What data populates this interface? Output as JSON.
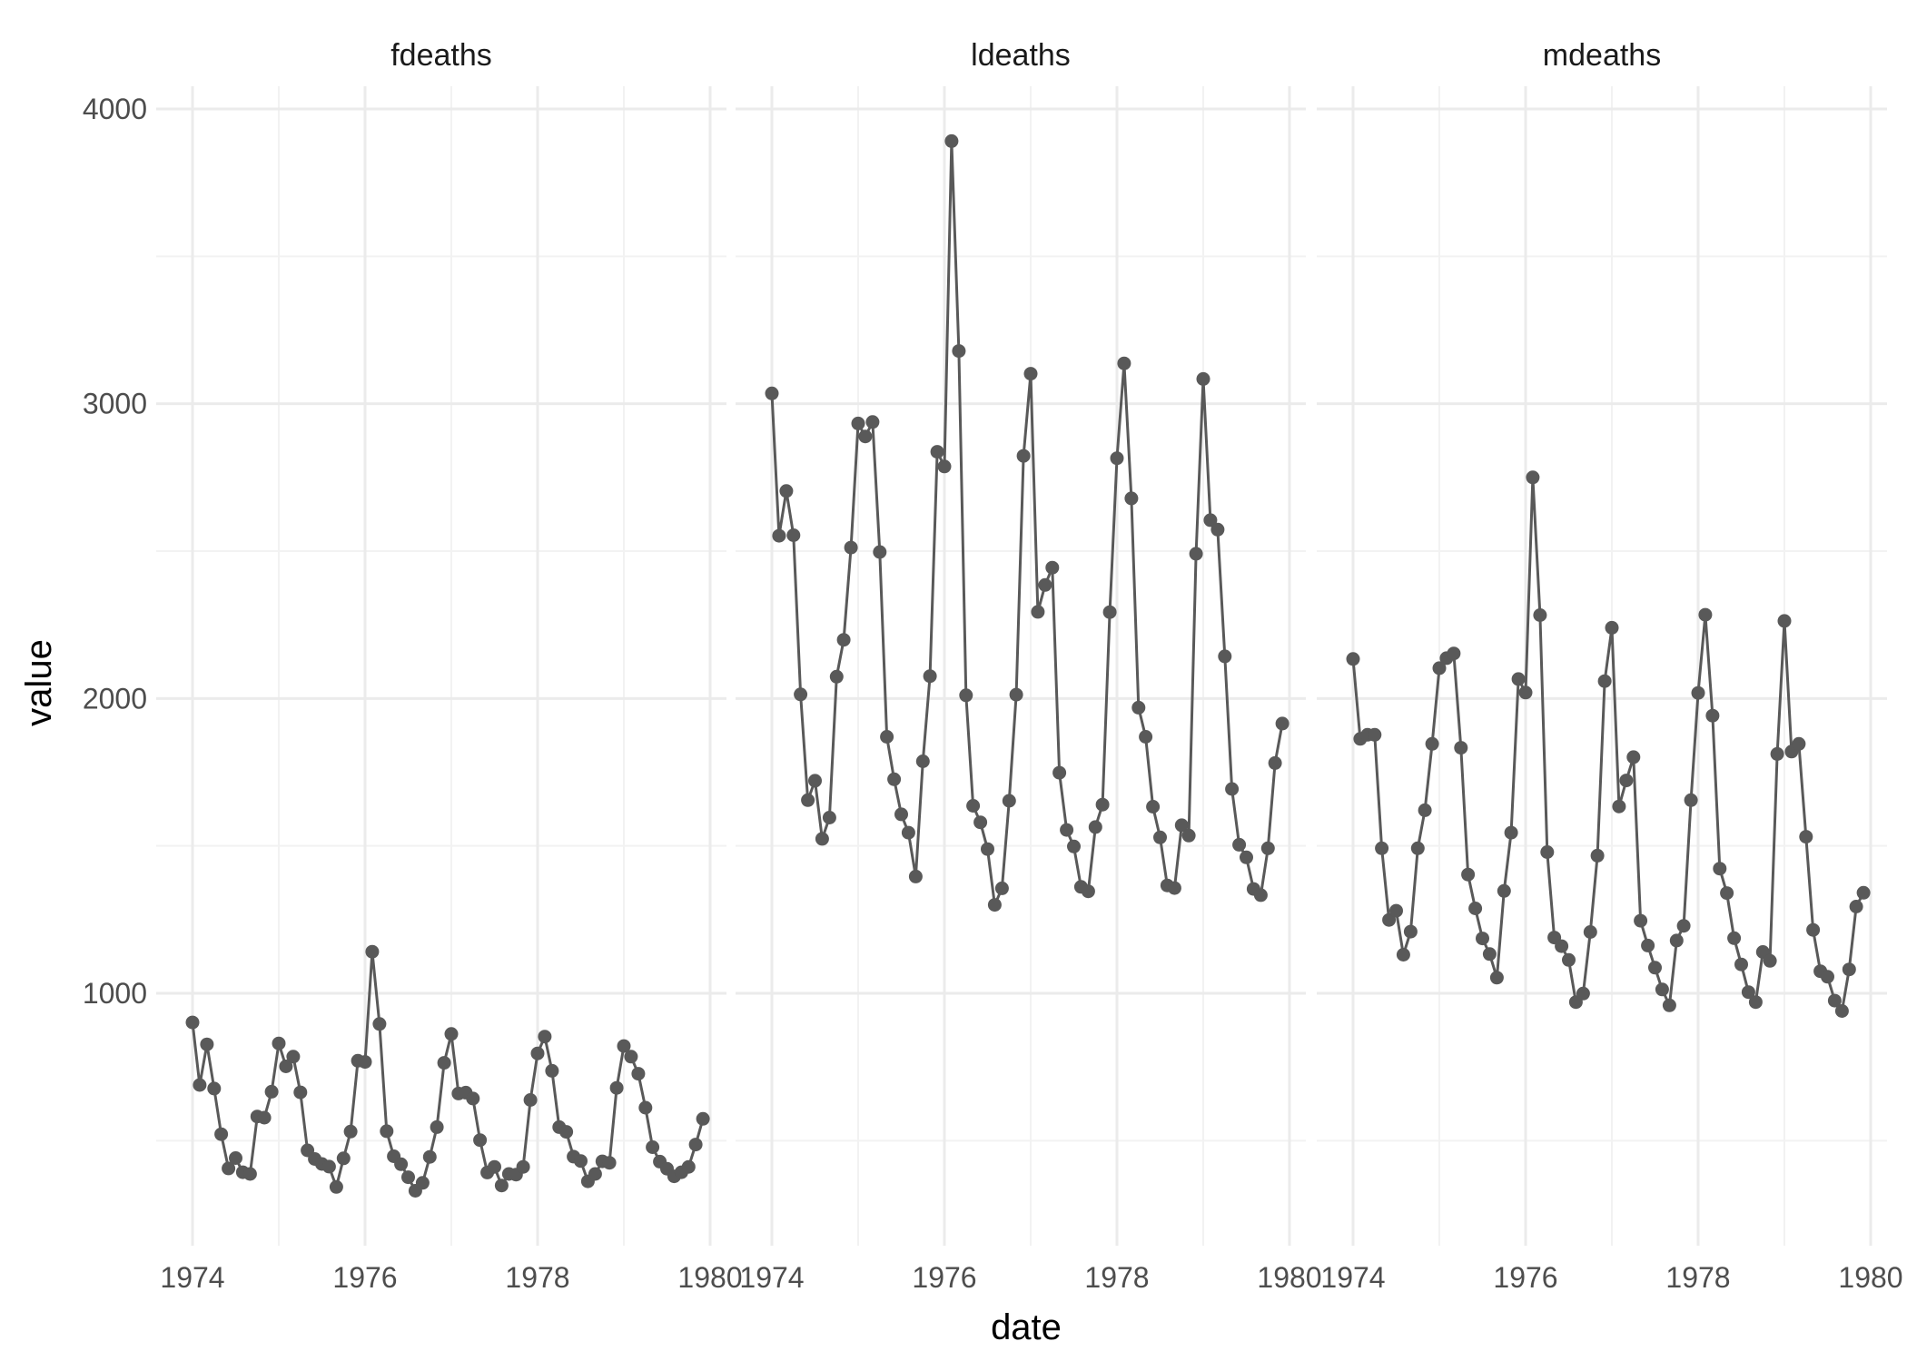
{
  "chart_data": {
    "type": "line",
    "title": "",
    "xlabel": "date",
    "ylabel": "value",
    "ylim": [
      300,
      4000
    ],
    "xlim": [
      1974,
      1980
    ],
    "x_ticks": [
      1974,
      1976,
      1978,
      1980
    ],
    "y_ticks": [
      1000,
      2000,
      3000,
      4000
    ],
    "grid": true,
    "legend": "none",
    "colors": {
      "series": "#595959",
      "point": "#595959"
    },
    "x": [
      1974.0,
      1974.083,
      1974.167,
      1974.25,
      1974.333,
      1974.417,
      1974.5,
      1974.583,
      1974.667,
      1974.75,
      1974.833,
      1974.917,
      1975.0,
      1975.083,
      1975.167,
      1975.25,
      1975.333,
      1975.417,
      1975.5,
      1975.583,
      1975.667,
      1975.75,
      1975.833,
      1975.917,
      1976.0,
      1976.083,
      1976.167,
      1976.25,
      1976.333,
      1976.417,
      1976.5,
      1976.583,
      1976.667,
      1976.75,
      1976.833,
      1976.917,
      1977.0,
      1977.083,
      1977.167,
      1977.25,
      1977.333,
      1977.417,
      1977.5,
      1977.583,
      1977.667,
      1977.75,
      1977.833,
      1977.917,
      1978.0,
      1978.083,
      1978.167,
      1978.25,
      1978.333,
      1978.417,
      1978.5,
      1978.583,
      1978.667,
      1978.75,
      1978.833,
      1978.917,
      1979.0,
      1979.083,
      1979.167,
      1979.25,
      1979.333,
      1979.417,
      1979.5,
      1979.583,
      1979.667,
      1979.75,
      1979.833,
      1979.917
    ],
    "facets": [
      {
        "name": "fdeaths",
        "values": [
          901,
          689,
          827,
          677,
          522,
          406,
          441,
          393,
          387,
          582,
          578,
          666,
          830,
          752,
          785,
          664,
          467,
          438,
          421,
          412,
          343,
          440,
          531,
          771,
          767,
          1141,
          896,
          532,
          447,
          420,
          376,
          330,
          357,
          445,
          546,
          764,
          862,
          660,
          663,
          643,
          502,
          392,
          411,
          348,
          387,
          385,
          411,
          638,
          796,
          853,
          737,
          546,
          530,
          446,
          431,
          362,
          387,
          430,
          425,
          679,
          821,
          785,
          727,
          612,
          478,
          429,
          405,
          379,
          393,
          411,
          487,
          574
        ]
      },
      {
        "name": "ldeaths",
        "values": [
          3035,
          2552,
          2704,
          2554,
          2014,
          1655,
          1721,
          1524,
          1596,
          2074,
          2199,
          2512,
          2933,
          2889,
          2938,
          2497,
          1870,
          1726,
          1607,
          1545,
          1396,
          1787,
          2076,
          2837,
          2787,
          3891,
          3179,
          2011,
          1636,
          1580,
          1489,
          1300,
          1356,
          1653,
          2013,
          2823,
          3102,
          2294,
          2385,
          2444,
          1748,
          1554,
          1498,
          1361,
          1346,
          1564,
          1640,
          2293,
          2815,
          3137,
          2679,
          1969,
          1870,
          1633,
          1529,
          1366,
          1357,
          1570,
          1535,
          2491,
          3084,
          2605,
          2573,
          2143,
          1693,
          1504,
          1461,
          1354,
          1333,
          1492,
          1781,
          1915
        ]
      },
      {
        "name": "mdeaths",
        "values": [
          2134,
          1863,
          1877,
          1877,
          1492,
          1249,
          1280,
          1131,
          1209,
          1492,
          1621,
          1846,
          2103,
          2137,
          2153,
          1833,
          1403,
          1288,
          1186,
          1133,
          1053,
          1347,
          1545,
          2066,
          2020,
          2750,
          2283,
          1479,
          1189,
          1160,
          1113,
          970,
          999,
          1208,
          1467,
          2059,
          2240,
          1634,
          1722,
          1801,
          1246,
          1162,
          1087,
          1013,
          959,
          1179,
          1229,
          1655,
          2019,
          2284,
          1942,
          1423,
          1340,
          1187,
          1098,
          1004,
          970,
          1140,
          1110,
          1812,
          2263,
          1820,
          1846,
          1531,
          1215,
          1075,
          1056,
          975,
          940,
          1081,
          1294,
          1341
        ]
      }
    ]
  }
}
